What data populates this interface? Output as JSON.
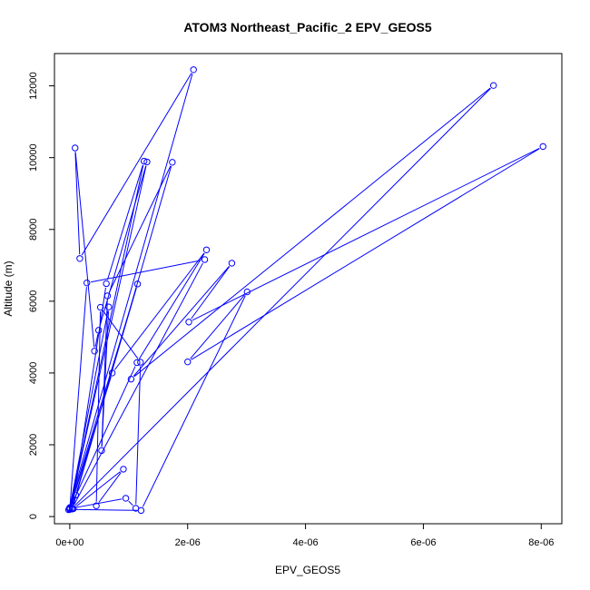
{
  "chart_data": {
    "type": "line",
    "title": "ATOM3 Northeast_Pacific_2 EPV_GEOS5",
    "xlabel": "EPV_GEOS5",
    "ylabel": "Altitude (m)",
    "xlim": [
      -2.6e-07,
      8.35e-06
    ],
    "ylim": [
      -200,
      12900
    ],
    "x_ticks": [
      0,
      2e-06,
      4e-06,
      6e-06,
      8e-06
    ],
    "x_tick_labels": [
      "0e+00",
      "2e-06",
      "4e-06",
      "6e-06",
      "8e-06"
    ],
    "y_ticks": [
      0,
      2000,
      4000,
      6000,
      8000,
      10000,
      12000
    ],
    "y_tick_labels": [
      "0",
      "2000",
      "4000",
      "6000",
      "8000",
      "10000",
      "12000"
    ],
    "grid": false,
    "color": "#0000ff",
    "x": [
      -2e-08,
      2.1e-06,
      1.7e-07,
      9e-08,
      4.2e-07,
      4.9e-07,
      1.31e-06,
      0.0,
      1.26e-06,
      6.2e-07,
      4e-08,
      1.74e-06,
      6.4e-07,
      5.4e-07,
      6.6e-07,
      0.0,
      1.15e-06,
      1e-07,
      6e-08,
      9.1e-07,
      4.5e-07,
      5.2e-07,
      1.2e-06,
      1.12e-06,
      9.5e-07,
      0.0,
      1.14e-06,
      2.32e-06,
      7.2e-07,
      0.0,
      2.9e-07,
      2.29e-06,
      4e-08,
      7.19e-06,
      1.04e-06,
      2.75e-06,
      2.02e-06,
      8.03e-06,
      2e-06,
      3.01e-06,
      1.21e-06,
      0.0
    ],
    "y": [
      190,
      12450,
      7190,
      10270,
      4610,
      5190,
      9880,
      230,
      9900,
      6490,
      210,
      9870,
      6150,
      1840,
      5840,
      250,
      6480,
      600,
      220,
      1320,
      300,
      5830,
      4300,
      230,
      510,
      220,
      4290,
      7430,
      4000,
      210,
      6510,
      7160,
      230,
      12010,
      3830,
      7060,
      5420,
      10310,
      4310,
      6260,
      170,
      200
    ]
  }
}
